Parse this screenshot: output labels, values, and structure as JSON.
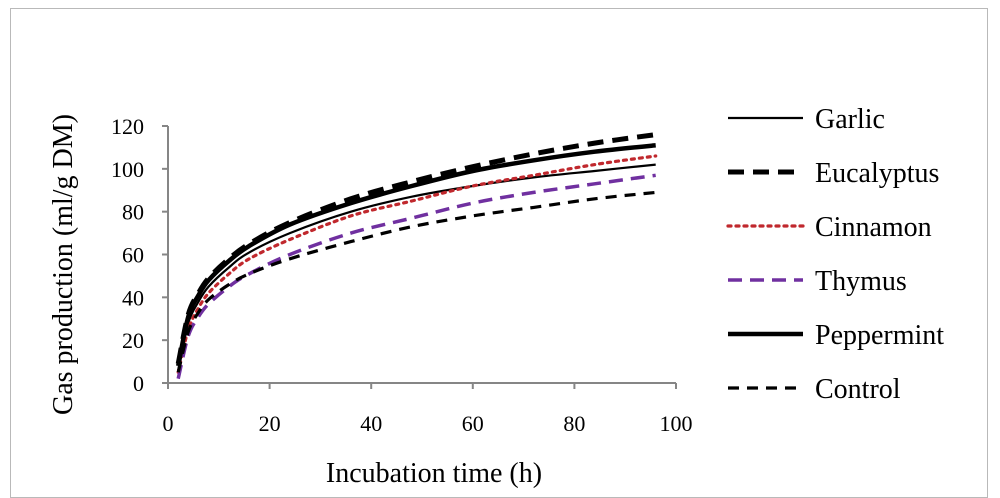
{
  "chart_data": {
    "type": "line",
    "xlabel": "Incubation time (h)",
    "ylabel": "Gas production (ml/g DM)",
    "xlim": [
      0,
      100
    ],
    "ylim": [
      0,
      120
    ],
    "x_ticks": [
      "0",
      "20",
      "40",
      "60",
      "80",
      "100"
    ],
    "y_ticks": [
      "0",
      "20",
      "40",
      "60",
      "80",
      "100",
      "120"
    ],
    "grid": false,
    "legend_position": "right",
    "series": [
      {
        "name": "Garlic",
        "color": "#000000",
        "style": "solid-thin",
        "x": [
          2,
          4,
          6,
          8,
          12,
          16,
          24,
          36,
          48,
          60,
          72,
          84,
          96
        ],
        "y": [
          6,
          28,
          38,
          45,
          54,
          61,
          70,
          80,
          87,
          92,
          96,
          99,
          102
        ]
      },
      {
        "name": "Eucalyptus",
        "color": "#000000",
        "style": "dash-thick",
        "x": [
          2,
          4,
          6,
          8,
          12,
          16,
          24,
          36,
          48,
          60,
          72,
          84,
          96
        ],
        "y": [
          9,
          32,
          42,
          49,
          58,
          65,
          75,
          86,
          94,
          101,
          107,
          112,
          116
        ]
      },
      {
        "name": "Cinnamon",
        "color": "#c0282d",
        "style": "dotted",
        "x": [
          2,
          4,
          6,
          8,
          12,
          16,
          24,
          36,
          48,
          60,
          72,
          84,
          96
        ],
        "y": [
          5,
          25,
          35,
          42,
          51,
          58,
          67,
          78,
          85,
          92,
          97,
          102,
          106
        ]
      },
      {
        "name": "Thymus",
        "color": "#7030a0",
        "style": "dash",
        "x": [
          2,
          4,
          6,
          8,
          12,
          16,
          24,
          36,
          48,
          60,
          72,
          84,
          96
        ],
        "y": [
          2,
          22,
          31,
          37,
          45,
          51,
          60,
          70,
          77,
          84,
          89,
          93,
          97
        ]
      },
      {
        "name": "Peppermint",
        "color": "#000000",
        "style": "solid-thick",
        "x": [
          2,
          4,
          6,
          8,
          12,
          16,
          24,
          36,
          48,
          60,
          72,
          84,
          96
        ],
        "y": [
          8,
          31,
          41,
          48,
          57,
          64,
          74,
          84,
          92,
          99,
          104,
          108,
          111
        ]
      },
      {
        "name": "Control",
        "color": "#000000",
        "style": "dash-medium",
        "x": [
          2,
          4,
          6,
          8,
          12,
          16,
          24,
          36,
          48,
          60,
          72,
          84,
          96
        ],
        "y": [
          5,
          24,
          33,
          39,
          46,
          51,
          58,
          66,
          73,
          78,
          82,
          86,
          89
        ]
      }
    ]
  }
}
